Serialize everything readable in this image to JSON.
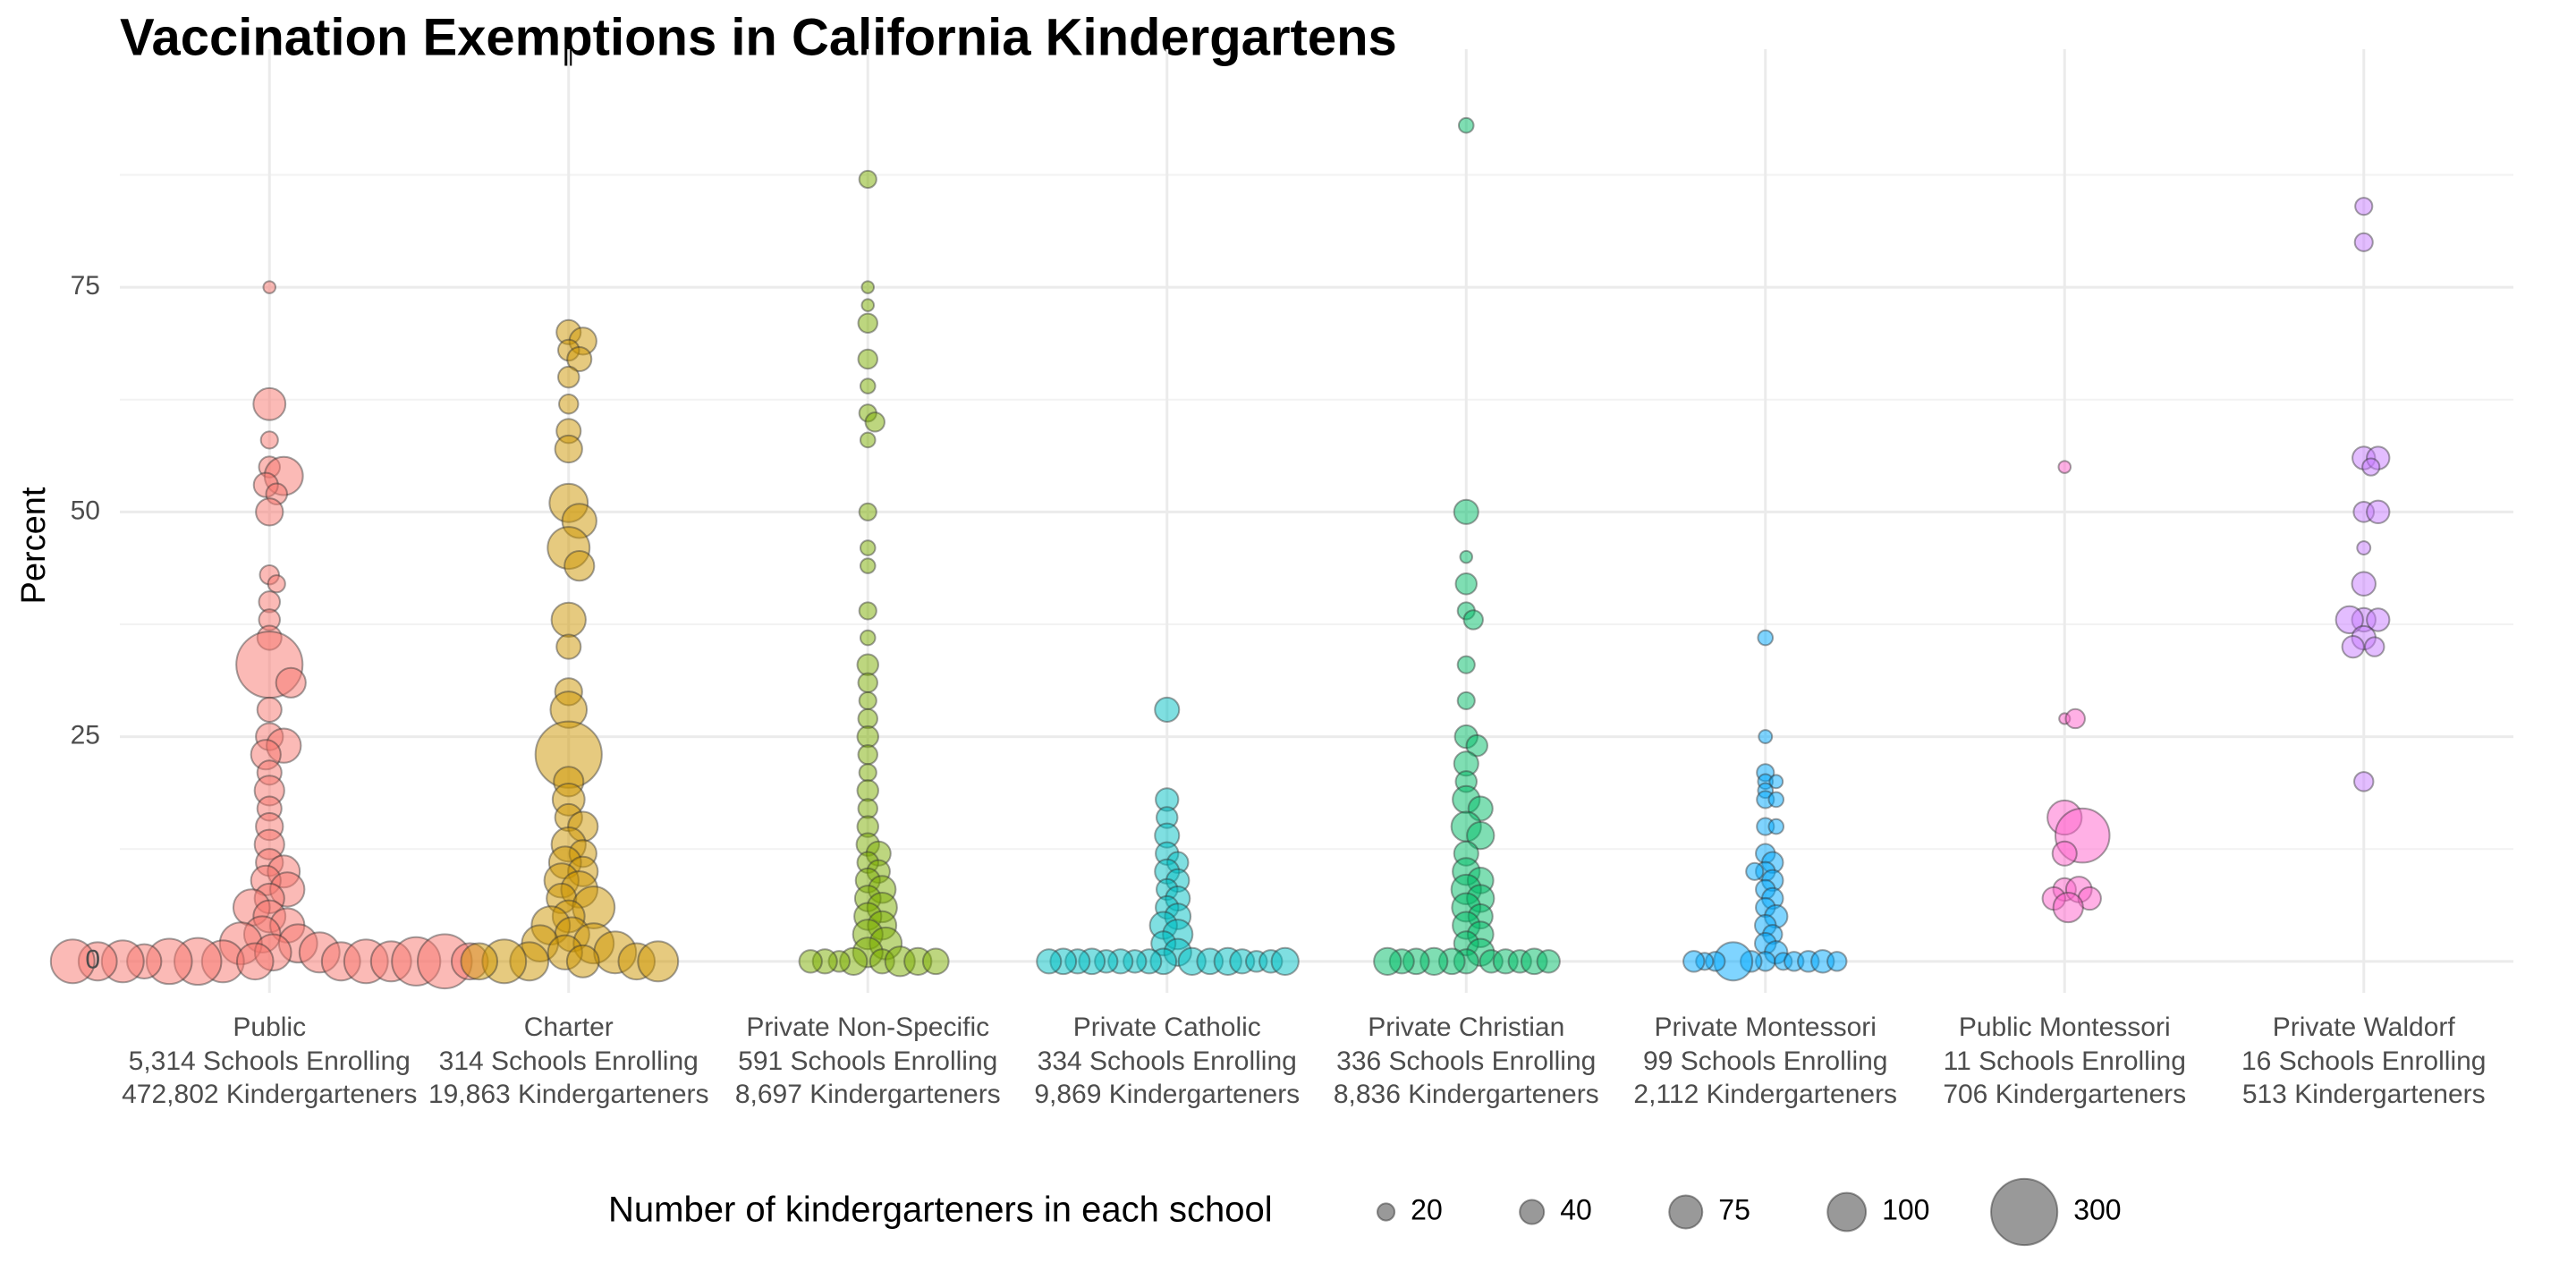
{
  "chart_data": {
    "type": "beeswarm",
    "title": "Vaccination Exemptions in California Kindergartens",
    "y_label": "Percent",
    "ylim": [
      -3.5,
      97
    ],
    "yticks": [
      0,
      25,
      50,
      75
    ],
    "minor_yticks": [
      12.5,
      37.5,
      62.5,
      87.5
    ],
    "grid": true,
    "series": [
      {
        "name": "Public",
        "schools": "5,314 Schools Enrolling",
        "kids": "472,802 Kindergarteners",
        "color": "#F8766D",
        "values": [
          75,
          62,
          58,
          55,
          54,
          53,
          52,
          50,
          43,
          42,
          40,
          38,
          36,
          33,
          31,
          28,
          25,
          24,
          23,
          21,
          19,
          17,
          15,
          13,
          11,
          10,
          9,
          8,
          7,
          6,
          5,
          4,
          3,
          2,
          2,
          1,
          1,
          0,
          0,
          0,
          0,
          0,
          0,
          0,
          0,
          0,
          0,
          0,
          0,
          0,
          0
        ],
        "sizes": [
          10,
          70,
          20,
          30,
          100,
          40,
          30,
          50,
          25,
          20,
          30,
          30,
          40,
          300,
          60,
          40,
          50,
          80,
          60,
          40,
          60,
          40,
          50,
          60,
          50,
          70,
          60,
          80,
          60,
          90,
          70,
          80,
          90,
          100,
          120,
          90,
          110,
          120,
          150,
          100,
          130,
          90,
          140,
          110,
          80,
          160,
          120,
          200,
          100,
          130,
          90
        ]
      },
      {
        "name": "Charter",
        "schools": "314 Schools Enrolling",
        "kids": "19,863 Kindergarteners",
        "color": "#CD9600",
        "values": [
          70,
          69,
          68,
          67,
          65,
          62,
          59,
          57,
          51,
          49,
          46,
          44,
          38,
          35,
          30,
          28,
          23,
          20,
          18,
          16,
          15,
          13,
          12,
          11,
          10,
          9,
          8,
          7,
          6,
          5,
          4,
          3,
          2,
          2,
          1,
          1,
          0,
          0,
          0,
          0,
          0,
          0
        ],
        "sizes": [
          40,
          50,
          30,
          40,
          30,
          25,
          40,
          50,
          100,
          80,
          120,
          60,
          80,
          40,
          50,
          90,
          300,
          60,
          70,
          50,
          60,
          80,
          50,
          70,
          60,
          80,
          90,
          60,
          120,
          70,
          100,
          80,
          110,
          90,
          120,
          80,
          100,
          130,
          90,
          110,
          70,
          90
        ]
      },
      {
        "name": "Private Non-Specific",
        "schools": "591 Schools Enrolling",
        "kids": "8,697 Kindergarteners",
        "color": "#7CAE00",
        "values": [
          87,
          75,
          73,
          71,
          67,
          64,
          61,
          60,
          58,
          50,
          46,
          44,
          39,
          36,
          33,
          31,
          29,
          27,
          25,
          23,
          21,
          19,
          17,
          15,
          13,
          12,
          11,
          10,
          9,
          8,
          7,
          6,
          5,
          4,
          3,
          2,
          1,
          0,
          0,
          0,
          0,
          0,
          0,
          0,
          0
        ],
        "sizes": [
          20,
          10,
          10,
          25,
          25,
          15,
          20,
          25,
          15,
          20,
          15,
          15,
          20,
          15,
          30,
          25,
          20,
          25,
          30,
          25,
          20,
          30,
          25,
          30,
          35,
          40,
          30,
          35,
          40,
          50,
          45,
          60,
          50,
          55,
          60,
          70,
          60,
          40,
          50,
          60,
          30,
          40,
          50,
          35,
          45
        ]
      },
      {
        "name": "Private Catholic",
        "schools": "334 Schools Enrolling",
        "kids": "9,869 Kindergarteners",
        "color": "#00BFC4",
        "values": [
          28,
          18,
          16,
          14,
          12,
          11,
          10,
          9,
          8,
          7,
          6,
          5,
          4,
          3,
          2,
          1,
          0,
          0,
          0,
          0,
          0,
          0,
          0,
          0,
          0,
          0,
          0,
          0,
          0,
          0,
          0,
          0
        ],
        "sizes": [
          40,
          35,
          30,
          40,
          35,
          30,
          40,
          35,
          30,
          40,
          35,
          45,
          50,
          60,
          40,
          50,
          45,
          40,
          50,
          35,
          45,
          40,
          50,
          35,
          40,
          45,
          30,
          40,
          35,
          45,
          50,
          40
        ]
      },
      {
        "name": "Private Christian",
        "schools": "336 Schools Enrolling",
        "kids": "8,836 Kindergarteners",
        "color": "#00BE67",
        "values": [
          93,
          50,
          45,
          42,
          39,
          38,
          33,
          29,
          25,
          24,
          22,
          20,
          18,
          17,
          15,
          14,
          12,
          10,
          9,
          8,
          7,
          6,
          5,
          4,
          3,
          2,
          1,
          0,
          0,
          0,
          0,
          0,
          0,
          0,
          0,
          0,
          0,
          0
        ],
        "sizes": [
          15,
          40,
          10,
          30,
          20,
          25,
          20,
          20,
          35,
          30,
          40,
          30,
          50,
          40,
          60,
          50,
          40,
          50,
          45,
          60,
          50,
          55,
          40,
          50,
          45,
          40,
          50,
          40,
          45,
          35,
          50,
          40,
          45,
          35,
          40,
          45,
          50,
          35
        ]
      },
      {
        "name": "Private Montessori",
        "schools": "99 Schools Enrolling",
        "kids": "2,112 Kindergarteners",
        "color": "#00A9FF",
        "values": [
          36,
          25,
          21,
          20,
          20,
          19,
          18,
          18,
          15,
          15,
          12,
          11,
          10,
          10,
          9,
          8,
          7,
          6,
          5,
          4,
          3,
          2,
          1,
          0,
          0,
          0,
          0,
          0,
          0,
          0,
          0,
          0,
          0,
          0
        ],
        "sizes": [
          15,
          12,
          20,
          15,
          12,
          15,
          20,
          15,
          20,
          15,
          25,
          30,
          25,
          20,
          30,
          25,
          30,
          25,
          35,
          30,
          25,
          30,
          35,
          25,
          30,
          20,
          25,
          100,
          30,
          25,
          35,
          20,
          25,
          30
        ]
      },
      {
        "name": "Public Montessori",
        "schools": "11 Schools Enrolling",
        "kids": "706 Kindergarteners",
        "color": "#FF61CC",
        "values": [
          55,
          27,
          27,
          16,
          14,
          12,
          8,
          8,
          7,
          7,
          6
        ],
        "sizes": [
          10,
          8,
          25,
          80,
          200,
          40,
          35,
          45,
          35,
          35,
          60
        ]
      },
      {
        "name": "Private Waldorf",
        "schools": "16 Schools Enrolling",
        "kids": "513 Kindergarteners",
        "color": "#C77CFF",
        "values": [
          84,
          80,
          56,
          56,
          55,
          50,
          50,
          46,
          42,
          38,
          38,
          38,
          36,
          35,
          35,
          20
        ],
        "sizes": [
          20,
          22,
          35,
          35,
          20,
          28,
          35,
          12,
          38,
          38,
          35,
          50,
          38,
          25,
          32,
          25
        ]
      }
    ],
    "legend": {
      "title": "Number of kindergarteners in each school",
      "sizes": [
        20,
        40,
        75,
        100,
        300
      ]
    }
  }
}
